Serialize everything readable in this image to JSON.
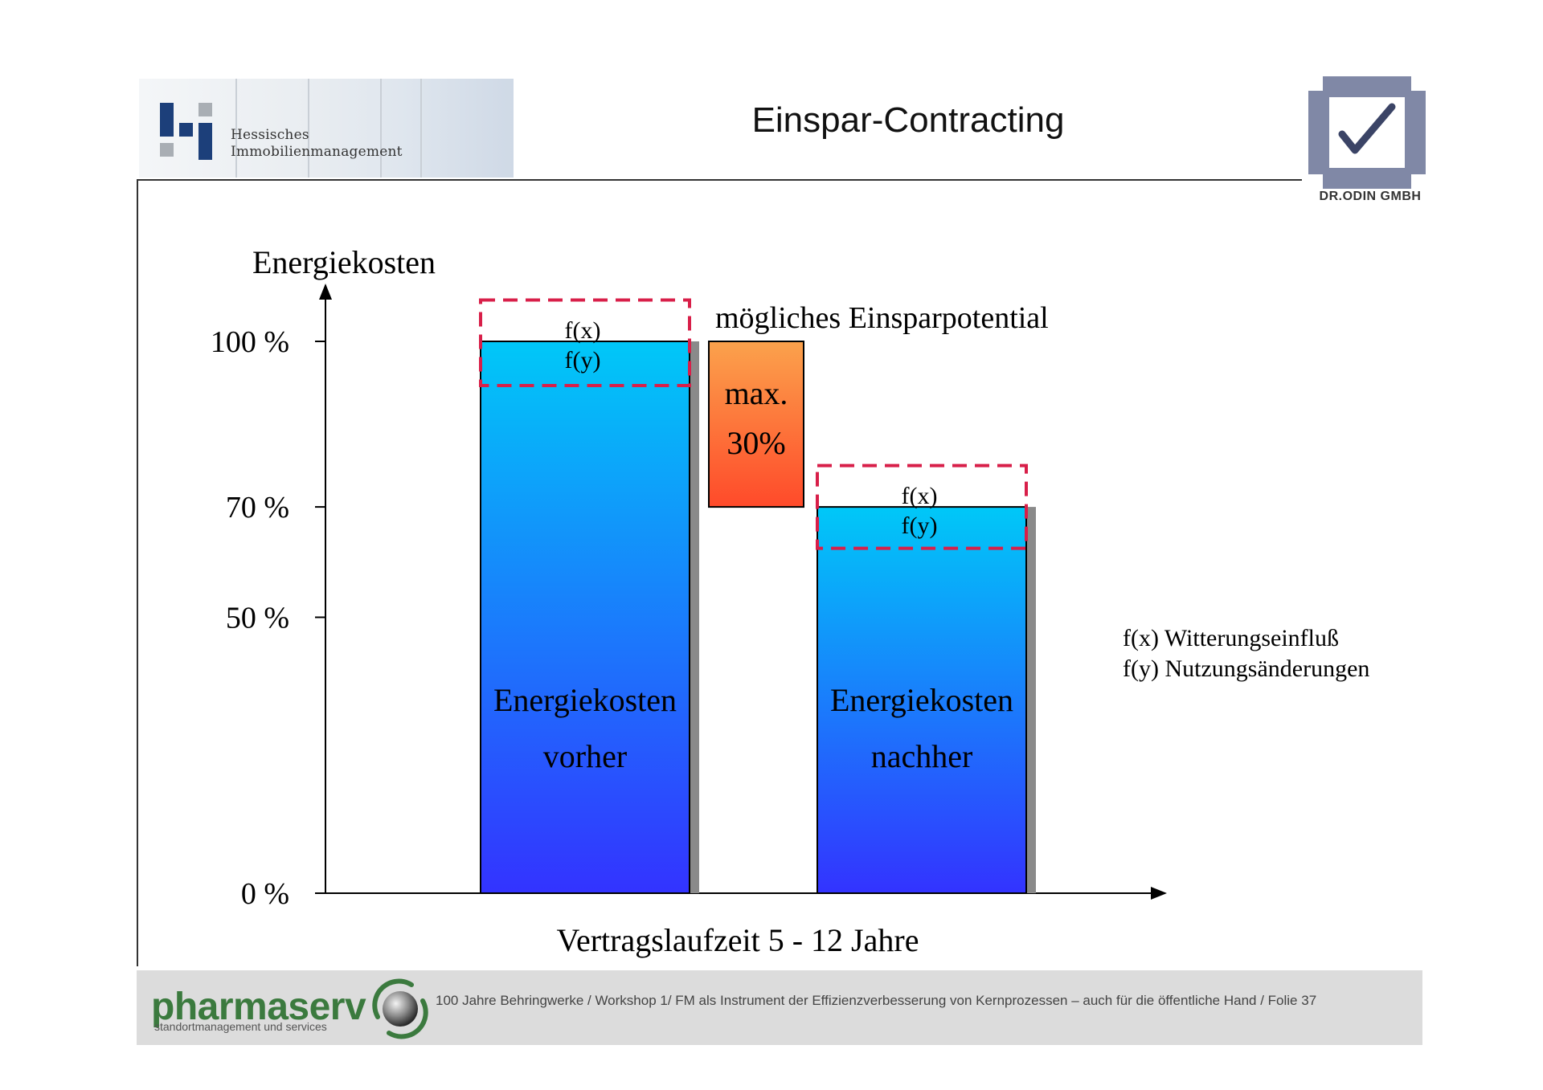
{
  "header": {
    "title": "Einspar-Contracting",
    "logo_left_line1": "Hessisches",
    "logo_left_line2": "Immobilienmanagement",
    "logo_right_name": "DR.ODIN GMBH"
  },
  "footer": {
    "brand": "pharmaserv",
    "brand_sub": "standortmanagement und services",
    "text": "100 Jahre Behringwerke / Workshop 1/ FM als Instrument der Effizienzverbesserung von Kernprozessen – auch für die öffentliche Hand / Folie 37"
  },
  "colors": {
    "bar_top": "#00c8f8",
    "bar_bottom": "#3333ff",
    "savings_top": "#fba24c",
    "savings_bottom": "#ff4a2a",
    "dashed": "#d81f49",
    "brand_green": "#3b7a3e"
  },
  "chart_data": {
    "type": "bar",
    "ylabel": "Energiekosten",
    "xlabel": "Vertragslaufzeit 5 - 12 Jahre",
    "ylim": [
      0,
      100
    ],
    "yticks": [
      {
        "value": 0,
        "label": "0 %"
      },
      {
        "value": 50,
        "label": "50 %"
      },
      {
        "value": 70,
        "label": "70 %"
      },
      {
        "value": 100,
        "label": "100 %"
      }
    ],
    "bars": [
      {
        "label_line1": "Energiekosten",
        "label_line2": "vorher",
        "value": 100,
        "band_top": 107.5,
        "band_bottom": 92,
        "fx": "f(x)",
        "fy": "f(y)"
      },
      {
        "label_line1": "Energiekosten",
        "label_line2": "nachher",
        "value": 70,
        "band_top": 77.5,
        "band_bottom": 62.5,
        "fx": "f(x)",
        "fy": "f(y)"
      }
    ],
    "savings": {
      "from": 70,
      "to": 100,
      "line1": "max.",
      "line2": "30%",
      "caption": "mögliches Einsparpotential"
    },
    "legend": [
      "f(x) Witterungseinfluß",
      "f(y) Nutzungsänderungen"
    ]
  }
}
